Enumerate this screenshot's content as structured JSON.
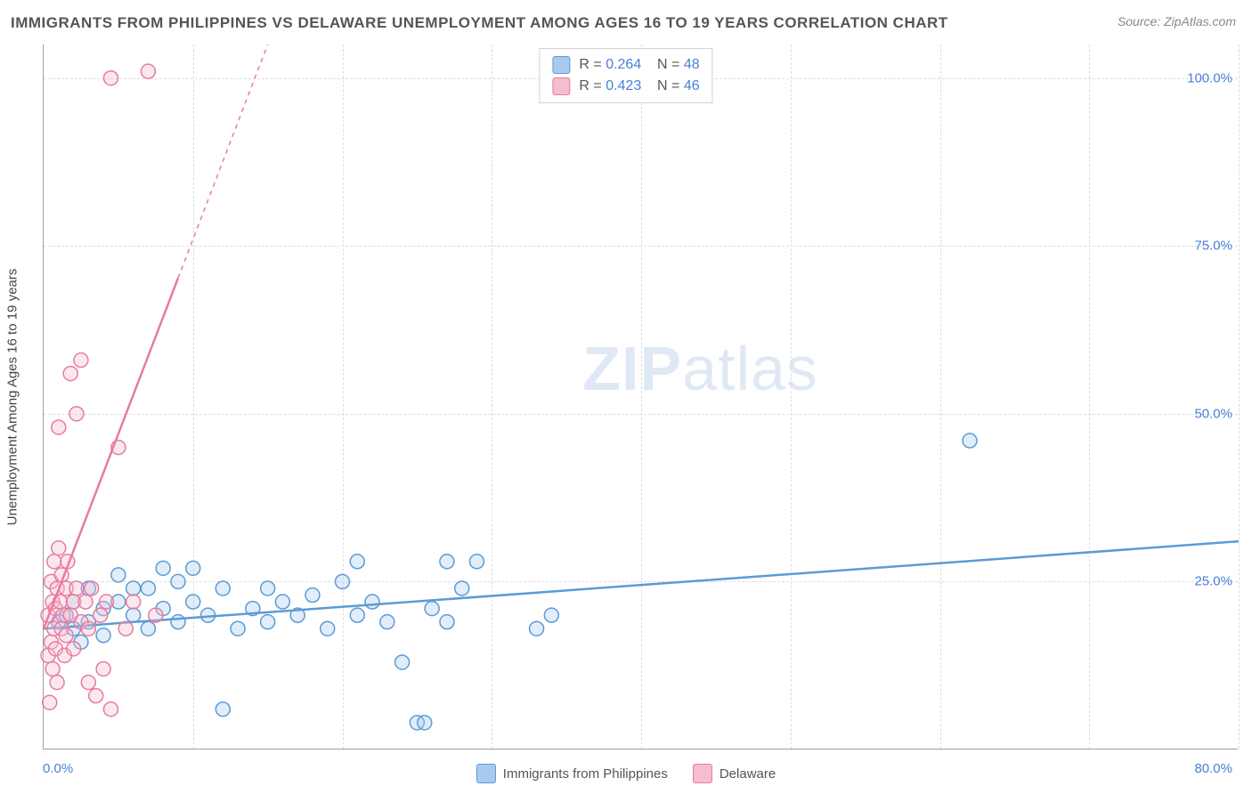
{
  "title": "IMMIGRANTS FROM PHILIPPINES VS DELAWARE UNEMPLOYMENT AMONG AGES 16 TO 19 YEARS CORRELATION CHART",
  "source_label": "Source:",
  "source_value": "ZipAtlas.com",
  "watermark_zip": "ZIP",
  "watermark_atlas": "atlas",
  "y_axis_title": "Unemployment Among Ages 16 to 19 years",
  "chart": {
    "type": "scatter",
    "xlim": [
      0,
      80
    ],
    "ylim": [
      0,
      105
    ],
    "x_ticks": [
      0,
      80
    ],
    "x_tick_labels": [
      "0.0%",
      "80.0%"
    ],
    "y_ticks": [
      25,
      50,
      75,
      100
    ],
    "y_tick_labels": [
      "25.0%",
      "50.0%",
      "75.0%",
      "100.0%"
    ],
    "x_gridlines": [
      10,
      20,
      30,
      40,
      50,
      60,
      70,
      80
    ],
    "y_gridlines": [
      25,
      50,
      75,
      100
    ],
    "background_color": "#ffffff",
    "grid_color": "#dcdde0",
    "axis_color": "#9aa0a6",
    "marker_radius": 8,
    "marker_stroke_width": 1.5,
    "marker_fill_opacity": 0.35,
    "series": [
      {
        "name": "Immigrants from Philippines",
        "color": "#5b9bd5",
        "fill": "#a8cbed",
        "R": "0.264",
        "N": "48",
        "trend": {
          "x1": 0,
          "y1": 18,
          "x2": 80,
          "y2": 31,
          "dashed_after": null
        },
        "points": [
          [
            1,
            19
          ],
          [
            1.5,
            20
          ],
          [
            2,
            18
          ],
          [
            2,
            22
          ],
          [
            2.5,
            16
          ],
          [
            3,
            24
          ],
          [
            3,
            19
          ],
          [
            4,
            21
          ],
          [
            4,
            17
          ],
          [
            5,
            22
          ],
          [
            5,
            26
          ],
          [
            6,
            20
          ],
          [
            6,
            24
          ],
          [
            7,
            18
          ],
          [
            7,
            24
          ],
          [
            8,
            21
          ],
          [
            8,
            27
          ],
          [
            9,
            19
          ],
          [
            9,
            25
          ],
          [
            10,
            22
          ],
          [
            10,
            27
          ],
          [
            11,
            20
          ],
          [
            12,
            24
          ],
          [
            12,
            6
          ],
          [
            13,
            18
          ],
          [
            14,
            21
          ],
          [
            15,
            19
          ],
          [
            15,
            24
          ],
          [
            16,
            22
          ],
          [
            17,
            20
          ],
          [
            18,
            23
          ],
          [
            19,
            18
          ],
          [
            20,
            25
          ],
          [
            21,
            20
          ],
          [
            21,
            28
          ],
          [
            22,
            22
          ],
          [
            23,
            19
          ],
          [
            24,
            13
          ],
          [
            25,
            4
          ],
          [
            25.5,
            4
          ],
          [
            26,
            21
          ],
          [
            27,
            28
          ],
          [
            27,
            19
          ],
          [
            28,
            24
          ],
          [
            29,
            28
          ],
          [
            33,
            18
          ],
          [
            34,
            20
          ],
          [
            62,
            46
          ]
        ]
      },
      {
        "name": "Delaware",
        "color": "#e87ba0",
        "fill": "#f4bdd0",
        "R": "0.423",
        "N": "46",
        "trend": {
          "x1": 0,
          "y1": 18,
          "x2": 15,
          "y2": 105,
          "dashed_after_x": 9
        },
        "points": [
          [
            0.3,
            20
          ],
          [
            0.3,
            14
          ],
          [
            0.4,
            7
          ],
          [
            0.5,
            25
          ],
          [
            0.5,
            16
          ],
          [
            0.6,
            22
          ],
          [
            0.6,
            12
          ],
          [
            0.7,
            18
          ],
          [
            0.7,
            28
          ],
          [
            0.8,
            21
          ],
          [
            0.8,
            15
          ],
          [
            0.9,
            24
          ],
          [
            0.9,
            10
          ],
          [
            1.0,
            48
          ],
          [
            1.0,
            30
          ],
          [
            1.1,
            22
          ],
          [
            1.2,
            18
          ],
          [
            1.2,
            26
          ],
          [
            1.3,
            20
          ],
          [
            1.4,
            14
          ],
          [
            1.5,
            24
          ],
          [
            1.5,
            17
          ],
          [
            1.6,
            28
          ],
          [
            1.8,
            56
          ],
          [
            1.8,
            20
          ],
          [
            2.0,
            22
          ],
          [
            2.0,
            15
          ],
          [
            2.2,
            50
          ],
          [
            2.2,
            24
          ],
          [
            2.5,
            19
          ],
          [
            2.5,
            58
          ],
          [
            2.8,
            22
          ],
          [
            3.0,
            18
          ],
          [
            3.0,
            10
          ],
          [
            3.2,
            24
          ],
          [
            3.5,
            8
          ],
          [
            3.8,
            20
          ],
          [
            4.0,
            12
          ],
          [
            4.2,
            22
          ],
          [
            4.5,
            6
          ],
          [
            4.5,
            100
          ],
          [
            5.0,
            45
          ],
          [
            5.5,
            18
          ],
          [
            6.0,
            22
          ],
          [
            7.0,
            101
          ],
          [
            7.5,
            20
          ]
        ]
      }
    ]
  },
  "bottom_legend": [
    {
      "label": "Immigrants from Philippines",
      "fill": "#a8cbed",
      "stroke": "#5b9bd5"
    },
    {
      "label": "Delaware",
      "fill": "#f4bdd0",
      "stroke": "#e87ba0"
    }
  ],
  "stat_legend_labels": {
    "R": "R =",
    "N": "N ="
  }
}
